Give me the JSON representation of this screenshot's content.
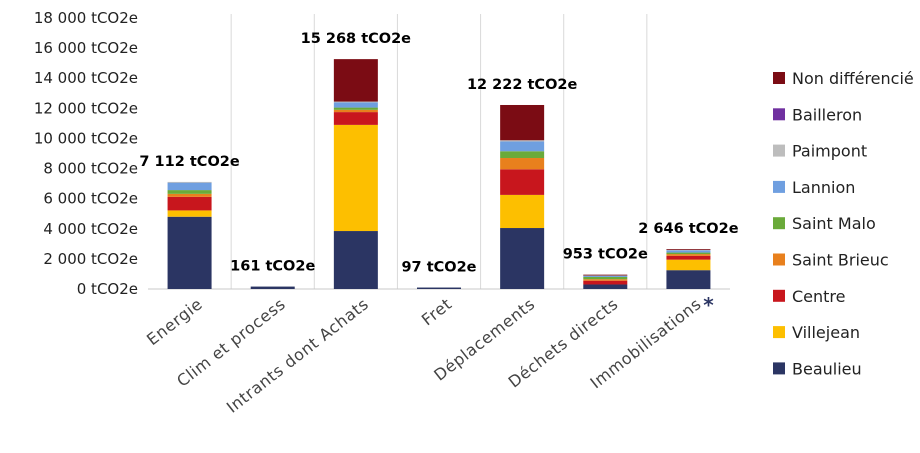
{
  "chart_data": {
    "type": "bar",
    "stacked": true,
    "categories": [
      "Energie",
      "Clim et process",
      "Intrants dont Achats",
      "Fret",
      "Déplacements",
      "Déchets directs",
      "Immobilisations"
    ],
    "y_tick_labels": [
      "0 tCO2e",
      "2 000 tCO2e",
      "4 000 tCO2e",
      "6 000 tCO2e",
      "8 000 tCO2e",
      "10 000 tCO2e",
      "12 000 tCO2e",
      "14 000 tCO2e",
      "16 000 tCO2e",
      "18 000 tCO2e"
    ],
    "ylim": [
      0,
      18000
    ],
    "grid": "vertical separators between categories",
    "legend_position": "right",
    "totals": [
      "7 112 tCO2e",
      "161 tCO2e",
      "15 268 tCO2e",
      "97 tCO2e",
      "12 222 tCO2e",
      "953 tCO2e",
      "2 646 tCO2e"
    ],
    "annotation_marker": {
      "category": "Immobilisations",
      "text": "*"
    },
    "series": [
      {
        "name": "Beaulieu",
        "color": "#2b3563",
        "values": [
          4800,
          161,
          3850,
          97,
          4050,
          300,
          1250
        ]
      },
      {
        "name": "Villejean",
        "color": "#fdbf00",
        "values": [
          420,
          0,
          7050,
          0,
          2200,
          0,
          700
        ]
      },
      {
        "name": "Centre",
        "color": "#c8161d",
        "values": [
          900,
          0,
          850,
          0,
          1700,
          250,
          250
        ]
      },
      {
        "name": "Saint Brieuc",
        "color": "#e8801d",
        "values": [
          200,
          0,
          150,
          0,
          750,
          100,
          120
        ]
      },
      {
        "name": "Saint Malo",
        "color": "#6aaa3a",
        "values": [
          250,
          0,
          150,
          0,
          450,
          150,
          100
        ]
      },
      {
        "name": "Lannion",
        "color": "#6f9fe0",
        "values": [
          500,
          0,
          350,
          0,
          650,
          100,
          150
        ]
      },
      {
        "name": "Paimpont",
        "color": "#bdbdbd",
        "values": [
          42,
          0,
          50,
          0,
          80,
          20,
          50
        ]
      },
      {
        "name": "Bailleron",
        "color": "#7030a0",
        "values": [
          0,
          0,
          0,
          0,
          0,
          0,
          0
        ]
      },
      {
        "name": "Non différencié",
        "color": "#7b0c14",
        "values": [
          0,
          0,
          2818,
          0,
          2342,
          33,
          26
        ]
      }
    ],
    "legend_order": [
      "Non différencié",
      "Bailleron",
      "Paimpont",
      "Lannion",
      "Saint Malo",
      "Saint Brieuc",
      "Centre",
      "Villejean",
      "Beaulieu"
    ]
  }
}
